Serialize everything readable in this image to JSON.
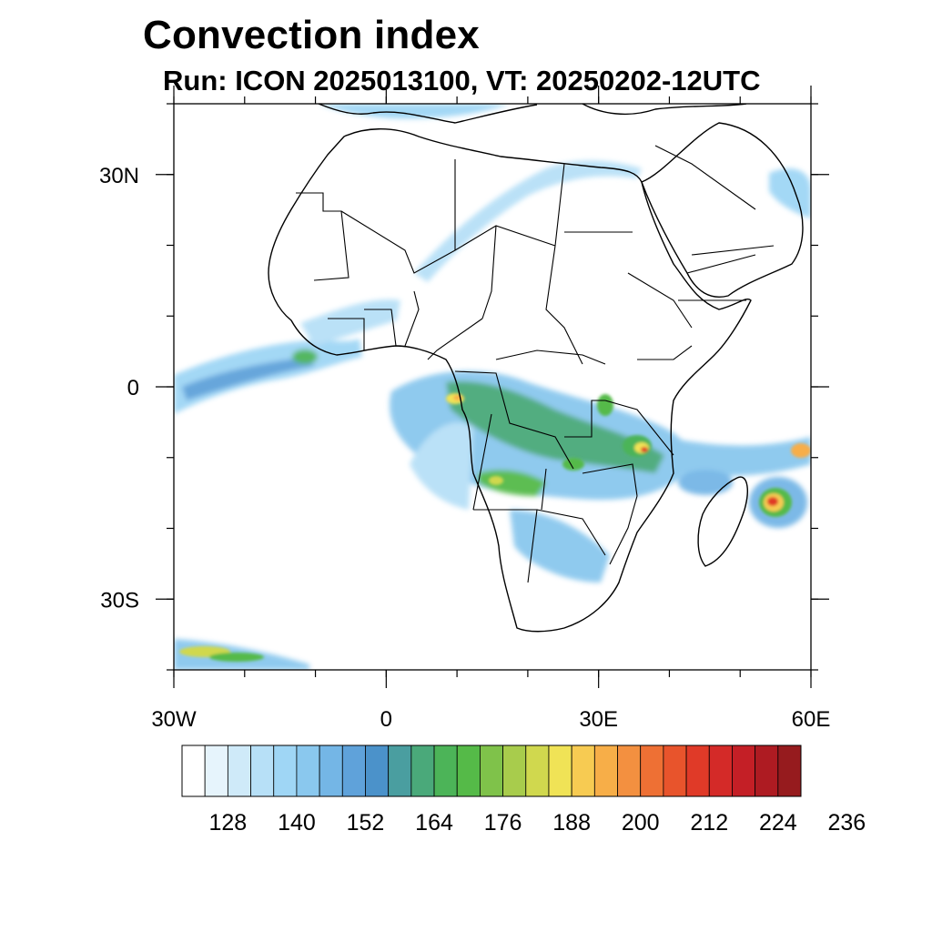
{
  "title": "Convection index",
  "subtitle": "Run: ICON 2025013100,  VT: 20250202-12UTC",
  "map": {
    "lon_range": [
      -30,
      60
    ],
    "lat_range": [
      -40,
      40
    ],
    "lon_ticks": [
      {
        "value": -30,
        "label": "30W"
      },
      {
        "value": 0,
        "label": "0"
      },
      {
        "value": 30,
        "label": "30E"
      },
      {
        "value": 60,
        "label": "60E"
      }
    ],
    "lat_ticks": [
      {
        "value": 30,
        "label": "30N"
      },
      {
        "value": 0,
        "label": "0"
      },
      {
        "value": -30,
        "label": "30S"
      }
    ],
    "minor_lon_step": 10,
    "minor_lat_step": 10,
    "colorbar": {
      "colors": [
        "#ffffff",
        "#e6f4fc",
        "#cfeaf9",
        "#b7e0f7",
        "#9fd6f5",
        "#8ac8ee",
        "#74b6e6",
        "#5fa2da",
        "#4b92ca",
        "#4a9ea0",
        "#4aa97a",
        "#4cb458",
        "#55ba48",
        "#7fc24a",
        "#a8cc4c",
        "#d0d84e",
        "#f0e356",
        "#f7cb52",
        "#f7ae48",
        "#f39040",
        "#ee7034",
        "#e8542c",
        "#e03a28",
        "#d42a28",
        "#c41f26",
        "#ae1b22",
        "#961b1e"
      ],
      "tick_labels": [
        "128",
        "140",
        "152",
        "164",
        "176",
        "188",
        "200",
        "212",
        "224",
        "236"
      ]
    },
    "features": [
      "coastlines",
      "country-borders",
      "convection-index-shading"
    ]
  }
}
